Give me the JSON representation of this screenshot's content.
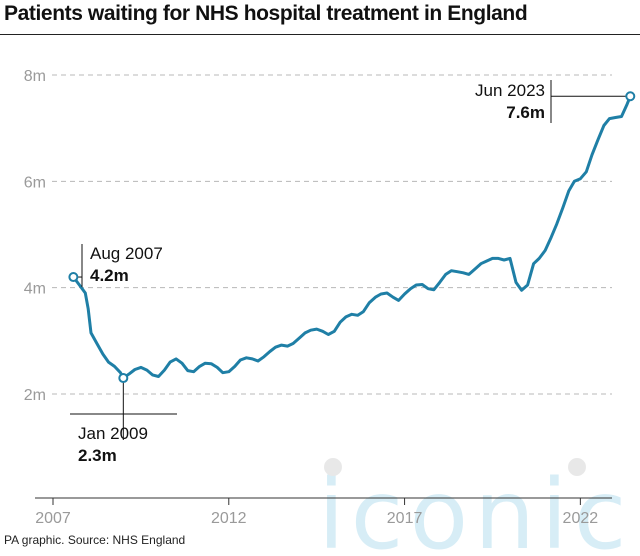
{
  "header": {
    "title": "Patients waiting for NHS hospital treatment in England"
  },
  "footer": {
    "source": "PA graphic. Source: NHS England"
  },
  "watermark": {
    "text": "iconic"
  },
  "colors": {
    "line": "#1f7fa6",
    "grid": "#b8b8b8",
    "tick": "#9a9a9a",
    "text": "#111111"
  },
  "chart_data": {
    "type": "line",
    "title": "Patients waiting for NHS hospital treatment in England",
    "xlabel": "",
    "ylabel": "",
    "xlim": [
      2007.58,
      2023.42
    ],
    "ylim": [
      0,
      8
    ],
    "x_ticks": [
      {
        "value": 2007,
        "label": "2007"
      },
      {
        "value": 2012,
        "label": "2012"
      },
      {
        "value": 2017,
        "label": "2017"
      },
      {
        "value": 2022,
        "label": "2022"
      }
    ],
    "y_ticks": [
      {
        "value": 8,
        "label": "8m"
      },
      {
        "value": 6,
        "label": "6m"
      },
      {
        "value": 4,
        "label": "4m"
      },
      {
        "value": 2,
        "label": "2m"
      }
    ],
    "grid": true,
    "series": [
      {
        "name": "",
        "points": [
          [
            2007.58,
            4.2
          ],
          [
            2007.75,
            4.05
          ],
          [
            2007.92,
            3.9
          ],
          [
            2008.0,
            3.6
          ],
          [
            2008.08,
            3.15
          ],
          [
            2008.25,
            2.95
          ],
          [
            2008.42,
            2.75
          ],
          [
            2008.58,
            2.6
          ],
          [
            2008.75,
            2.52
          ],
          [
            2008.92,
            2.4
          ],
          [
            2009.0,
            2.3
          ],
          [
            2009.17,
            2.38
          ],
          [
            2009.33,
            2.46
          ],
          [
            2009.5,
            2.5
          ],
          [
            2009.67,
            2.45
          ],
          [
            2009.83,
            2.36
          ],
          [
            2010.0,
            2.33
          ],
          [
            2010.17,
            2.45
          ],
          [
            2010.33,
            2.6
          ],
          [
            2010.5,
            2.66
          ],
          [
            2010.67,
            2.58
          ],
          [
            2010.83,
            2.44
          ],
          [
            2011.0,
            2.42
          ],
          [
            2011.17,
            2.52
          ],
          [
            2011.33,
            2.58
          ],
          [
            2011.5,
            2.57
          ],
          [
            2011.67,
            2.5
          ],
          [
            2011.83,
            2.4
          ],
          [
            2012.0,
            2.42
          ],
          [
            2012.17,
            2.52
          ],
          [
            2012.33,
            2.64
          ],
          [
            2012.5,
            2.68
          ],
          [
            2012.67,
            2.66
          ],
          [
            2012.83,
            2.62
          ],
          [
            2013.0,
            2.7
          ],
          [
            2013.17,
            2.8
          ],
          [
            2013.33,
            2.88
          ],
          [
            2013.5,
            2.92
          ],
          [
            2013.67,
            2.9
          ],
          [
            2013.83,
            2.95
          ],
          [
            2014.0,
            3.05
          ],
          [
            2014.17,
            3.15
          ],
          [
            2014.33,
            3.2
          ],
          [
            2014.5,
            3.22
          ],
          [
            2014.67,
            3.18
          ],
          [
            2014.83,
            3.12
          ],
          [
            2015.0,
            3.18
          ],
          [
            2015.17,
            3.35
          ],
          [
            2015.33,
            3.45
          ],
          [
            2015.5,
            3.5
          ],
          [
            2015.67,
            3.48
          ],
          [
            2015.83,
            3.55
          ],
          [
            2016.0,
            3.72
          ],
          [
            2016.17,
            3.82
          ],
          [
            2016.33,
            3.88
          ],
          [
            2016.5,
            3.9
          ],
          [
            2016.67,
            3.82
          ],
          [
            2016.83,
            3.76
          ],
          [
            2017.0,
            3.88
          ],
          [
            2017.17,
            3.98
          ],
          [
            2017.33,
            4.05
          ],
          [
            2017.5,
            4.06
          ],
          [
            2017.67,
            3.98
          ],
          [
            2017.83,
            3.96
          ],
          [
            2018.0,
            4.1
          ],
          [
            2018.17,
            4.25
          ],
          [
            2018.33,
            4.32
          ],
          [
            2018.5,
            4.3
          ],
          [
            2018.67,
            4.28
          ],
          [
            2018.83,
            4.25
          ],
          [
            2019.0,
            4.35
          ],
          [
            2019.17,
            4.45
          ],
          [
            2019.33,
            4.5
          ],
          [
            2019.5,
            4.55
          ],
          [
            2019.67,
            4.55
          ],
          [
            2019.83,
            4.52
          ],
          [
            2020.0,
            4.55
          ],
          [
            2020.17,
            4.1
          ],
          [
            2020.33,
            3.95
          ],
          [
            2020.5,
            4.05
          ],
          [
            2020.67,
            4.45
          ],
          [
            2020.83,
            4.55
          ],
          [
            2021.0,
            4.7
          ],
          [
            2021.17,
            4.95
          ],
          [
            2021.33,
            5.2
          ],
          [
            2021.5,
            5.5
          ],
          [
            2021.67,
            5.82
          ],
          [
            2021.83,
            6.0
          ],
          [
            2022.0,
            6.05
          ],
          [
            2022.17,
            6.18
          ],
          [
            2022.33,
            6.5
          ],
          [
            2022.5,
            6.78
          ],
          [
            2022.67,
            7.05
          ],
          [
            2022.83,
            7.18
          ],
          [
            2023.0,
            7.2
          ],
          [
            2023.17,
            7.22
          ],
          [
            2023.33,
            7.45
          ],
          [
            2023.42,
            7.6
          ]
        ]
      }
    ],
    "annotations": [
      {
        "date": "Aug 2007",
        "value": "4.2m",
        "x": 2007.58,
        "y": 4.2
      },
      {
        "date": "Jan 2009",
        "value": "2.3m",
        "x": 2009.0,
        "y": 2.3
      },
      {
        "date": "Jun 2023",
        "value": "7.6m",
        "x": 2023.42,
        "y": 7.6
      }
    ]
  }
}
